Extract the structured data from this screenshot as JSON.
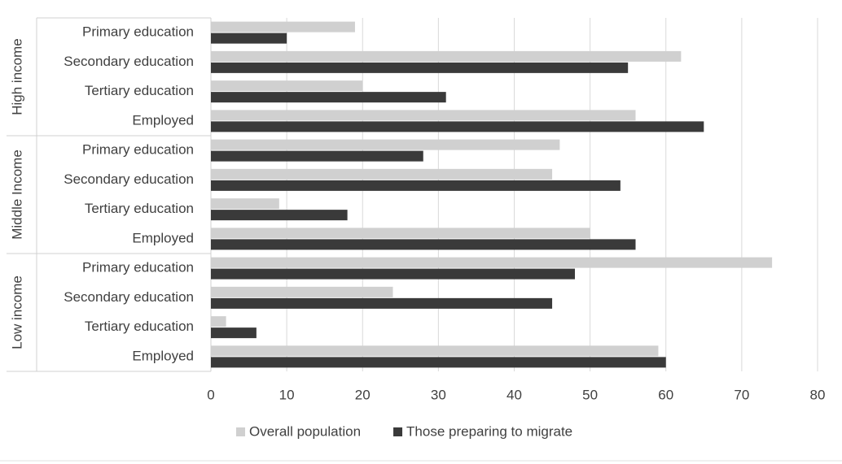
{
  "chart_data": {
    "type": "grouped-hbar",
    "groups": [
      {
        "name": "High income",
        "categories": [
          "Primary education",
          "Secondary education",
          "Tertiary education",
          "Employed"
        ]
      },
      {
        "name": "Middle Income",
        "categories": [
          "Primary education",
          "Secondary education",
          "Tertiary education",
          "Employed"
        ]
      },
      {
        "name": "Low income",
        "categories": [
          "Primary education",
          "Secondary education",
          "Tertiary education",
          "Employed"
        ]
      }
    ],
    "series": [
      {
        "name": "Overall population",
        "color": "#d0d0d0",
        "values": [
          19,
          62,
          20,
          56,
          46,
          45,
          9,
          50,
          74,
          24,
          2,
          59
        ]
      },
      {
        "name": "Those preparing to migrate",
        "color": "#3a3a3a",
        "values": [
          10,
          55,
          31,
          65,
          28,
          54,
          18,
          56,
          48,
          45,
          6,
          60
        ]
      }
    ],
    "xlim": [
      0,
      80
    ],
    "xticks": [
      0,
      10,
      20,
      30,
      40,
      50,
      60,
      70,
      80
    ],
    "grid": true,
    "legend": "bottom"
  }
}
